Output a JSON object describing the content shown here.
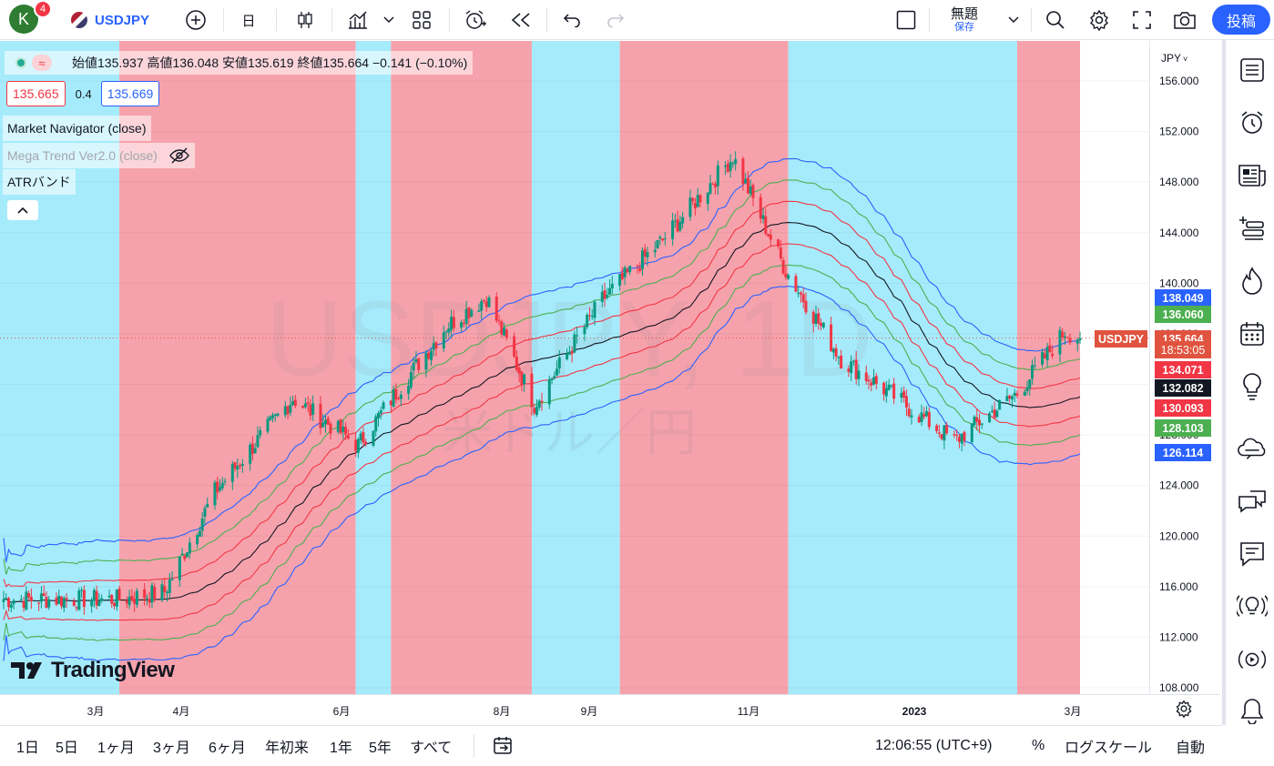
{
  "toolbar": {
    "avatar_letter": "K",
    "notif_count": "4",
    "symbol": "USDJPY",
    "interval": "日",
    "layout_name": "無題",
    "save_label": "保存",
    "publish_label": "投稿"
  },
  "legend": {
    "ohlc_text": "始値135.937 高値136.048 安値135.619 終値135.664 −0.141 (−0.10%)",
    "bid": "135.665",
    "spread": "0.4",
    "ask": "135.669",
    "indicators": [
      "Market Navigator (close)",
      "Mega Trend Ver2.0 (close)",
      "ATRバンド"
    ]
  },
  "watermark": {
    "symbol": "USDJPY, 1D",
    "description": "米ドル／円"
  },
  "price_axis": {
    "currency": "JPY",
    "ticks": [
      "156.000",
      "152.000",
      "148.000",
      "144.000",
      "140.000",
      "136.000",
      "132.000",
      "128.000",
      "124.000",
      "120.000",
      "116.000",
      "112.000",
      "108.000"
    ]
  },
  "price_tags": [
    {
      "label": "138.049",
      "color": "#2962ff",
      "value": 138.049
    },
    {
      "label": "136.060",
      "color": "#4caf50",
      "value": 136.06
    },
    {
      "label": "135.664",
      "color": "#e0533f",
      "value": 135.664
    },
    {
      "label": "18:53:05",
      "color": "#e0533f",
      "value": 135.664
    },
    {
      "label": "134.071",
      "color": "#f23645",
      "value": 134.071
    },
    {
      "label": "132.082",
      "color": "#131722",
      "value": 132.082
    },
    {
      "label": "130.093",
      "color": "#f23645",
      "value": 130.093
    },
    {
      "label": "128.103",
      "color": "#4caf50",
      "value": 128.103
    },
    {
      "label": "126.114",
      "color": "#2962ff",
      "value": 126.114
    }
  ],
  "symbol_tag": "USDJPY",
  "time_axis": [
    "3月",
    "4月",
    "6月",
    "8月",
    "9月",
    "11月",
    "2023",
    "3月"
  ],
  "logo_text": "TradingView",
  "bottombar": {
    "ranges": [
      "1日",
      "5日",
      "1ヶ月",
      "3ヶ月",
      "6ヶ月",
      "年初来",
      "1年",
      "5年",
      "すべて"
    ],
    "clock": "12:06:55 (UTC+9)",
    "percent": "%",
    "log": "ログスケール",
    "auto": "自動"
  },
  "colors": {
    "up_zone": "#f6a2ac",
    "down_zone": "#a6ebfb",
    "candle_up": "#089981",
    "candle_down": "#f23645",
    "mid": "#131722",
    "band1": "#f23645",
    "band2": "#4caf50",
    "band3": "#2962ff"
  },
  "chart_data": {
    "type": "candlestick",
    "symbol": "USDJPY",
    "y_unit": "JPY",
    "ylim": [
      107,
      158
    ],
    "zones": [
      {
        "type": "down",
        "from": "2022-01-03",
        "to": "2022-02-18"
      },
      {
        "type": "up",
        "from": "2022-02-18",
        "to": "2022-05-23"
      },
      {
        "type": "down",
        "from": "2022-05-23",
        "to": "2022-06-06"
      },
      {
        "type": "up",
        "from": "2022-06-06",
        "to": "2022-08-01"
      },
      {
        "type": "down",
        "from": "2022-08-01",
        "to": "2022-09-05"
      },
      {
        "type": "up",
        "from": "2022-09-05",
        "to": "2022-11-11"
      },
      {
        "type": "down",
        "from": "2022-11-11",
        "to": "2023-02-10"
      },
      {
        "type": "up",
        "from": "2023-02-10",
        "to": "2023-03-07"
      }
    ],
    "close_path": [
      {
        "date": "2022-01-03",
        "close": 115.0
      },
      {
        "date": "2022-02-18",
        "close": 115.0
      },
      {
        "date": "2022-03-08",
        "close": 115.6
      },
      {
        "date": "2022-03-28",
        "close": 123.5
      },
      {
        "date": "2022-04-28",
        "close": 130.9
      },
      {
        "date": "2022-05-24",
        "close": 127.2
      },
      {
        "date": "2022-06-06",
        "close": 130.8
      },
      {
        "date": "2022-06-28",
        "close": 136.6
      },
      {
        "date": "2022-07-14",
        "close": 138.9
      },
      {
        "date": "2022-08-02",
        "close": 130.4
      },
      {
        "date": "2022-08-29",
        "close": 138.7
      },
      {
        "date": "2022-09-22",
        "close": 143.4
      },
      {
        "date": "2022-10-20",
        "close": 150.0
      },
      {
        "date": "2022-11-10",
        "close": 141.0
      },
      {
        "date": "2022-12-02",
        "close": 134.0
      },
      {
        "date": "2022-12-20",
        "close": 131.5
      },
      {
        "date": "2023-01-16",
        "close": 127.5
      },
      {
        "date": "2023-02-10",
        "close": 131.3
      },
      {
        "date": "2023-03-01",
        "close": 136.2
      },
      {
        "date": "2023-03-07",
        "close": 135.664
      }
    ],
    "last": {
      "open": 135.937,
      "high": 136.048,
      "low": 135.619,
      "close": 135.664
    },
    "bands_last": {
      "upper3": 138.049,
      "upper2": 136.06,
      "upper1": 134.071,
      "mid": 132.082,
      "lower1": 130.093,
      "lower2": 128.103,
      "lower3": 126.114
    }
  }
}
